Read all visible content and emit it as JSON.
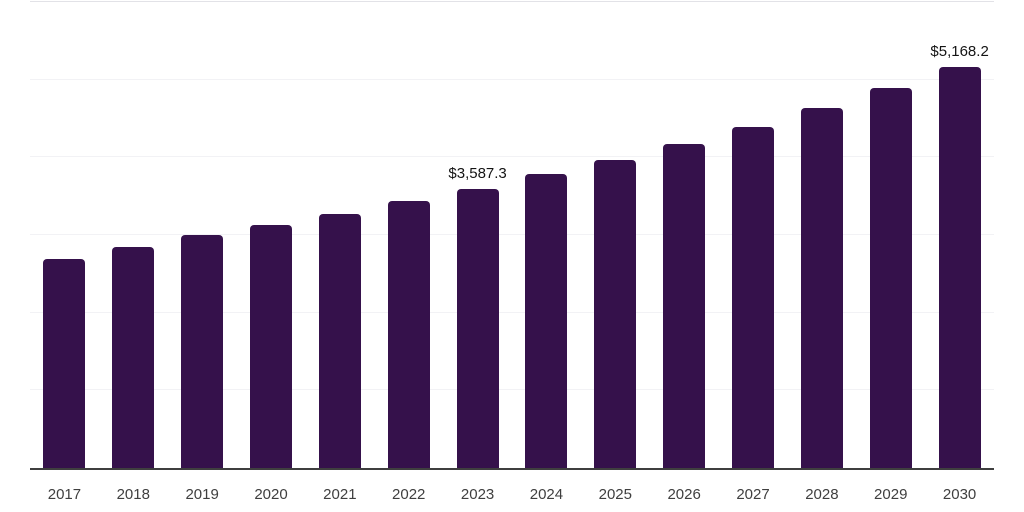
{
  "chart_data": {
    "type": "bar",
    "title": "",
    "xlabel": "",
    "ylabel": "",
    "categories": [
      "2017",
      "2018",
      "2019",
      "2020",
      "2021",
      "2022",
      "2023",
      "2024",
      "2025",
      "2026",
      "2027",
      "2028",
      "2029",
      "2030"
    ],
    "values": [
      2690,
      2845,
      3000,
      3130,
      3270,
      3440,
      3587.3,
      3780,
      3970,
      4175,
      4395,
      4640,
      4895,
      5168.2
    ],
    "value_labels": [
      {
        "category": "2023",
        "text": "$3,587.3"
      },
      {
        "category": "2030",
        "text": "$5,168.2"
      }
    ],
    "ylim": [
      0,
      6000
    ],
    "gridline_step": 1000,
    "grid": true,
    "legend": false,
    "y_axis_tick_labels_visible": false
  },
  "colors": {
    "bar_fill": "#35114b",
    "axis_line": "#3f3f3f",
    "top_border": "#e2e2e7",
    "gridline": "#f2f2f5",
    "value_label_text": "#141414",
    "tick_label_text": "#3f3f3f",
    "background": "#ffffff"
  }
}
